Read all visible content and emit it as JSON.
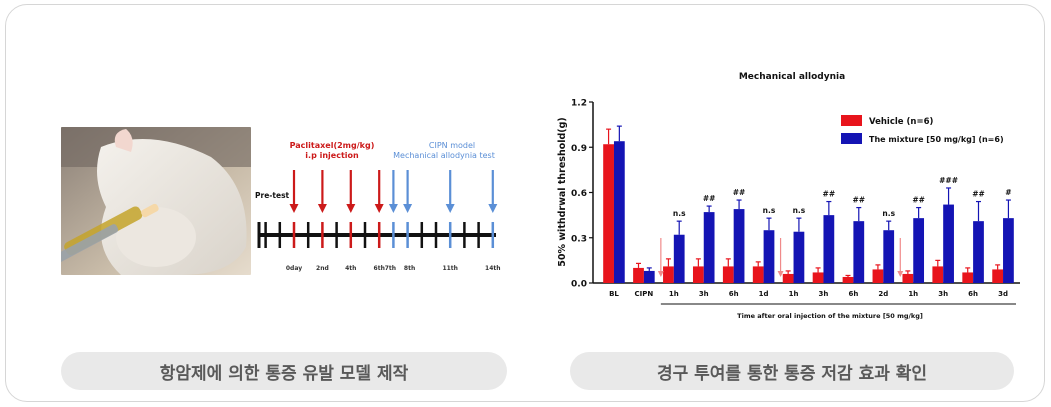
{
  "captions": {
    "left": "항암제에 의한 통증 유발 모델 제작",
    "right": "경구 투여를 통한 통증 저감 효과 확인"
  },
  "timeline": {
    "pretest_label": "Pre-test",
    "drug_label_line1": "Paclitaxel(2mg/kg)",
    "drug_label_line2": "i.p injection",
    "model_label_line1": "CIPN model",
    "model_label_line2": "Mechanical allodynia test",
    "days": [
      "0day",
      "2nd",
      "4th",
      "6th",
      "7th",
      "8th",
      "11th",
      "14th"
    ],
    "colors": {
      "drug": "#cc1a1a",
      "test": "#5b8fd6",
      "axis": "#111111"
    }
  },
  "chart_data": {
    "type": "bar",
    "title": "Mechanical allodynia",
    "ylabel": "50% withdrwal threshold(g)",
    "xlabel": "Time after oral injection of the mixture [50 mg/kg]",
    "ylim": [
      0,
      1.2
    ],
    "yticks": [
      "0.0",
      "0.3",
      "0.6",
      "0.9",
      "1.2"
    ],
    "categories": [
      "BL",
      "CIPN",
      "1h",
      "3h",
      "6h",
      "1d",
      "1h",
      "3h",
      "6h",
      "2d",
      "1h",
      "3h",
      "6h",
      "3d"
    ],
    "legend_position": "top-right",
    "series": [
      {
        "name": "Vehicle (n=6)",
        "color": "#e8141c",
        "values": [
          0.92,
          0.1,
          0.11,
          0.11,
          0.11,
          0.11,
          0.06,
          0.07,
          0.04,
          0.09,
          0.06,
          0.11,
          0.07,
          0.09
        ],
        "errors": [
          0.1,
          0.03,
          0.05,
          0.05,
          0.05,
          0.03,
          0.02,
          0.03,
          0.01,
          0.03,
          0.02,
          0.04,
          0.03,
          0.03
        ]
      },
      {
        "name": "The mixture [50 mg/kg] (n=6)",
        "color": "#1414b4",
        "values": [
          0.94,
          0.08,
          0.32,
          0.47,
          0.49,
          0.35,
          0.34,
          0.45,
          0.41,
          0.35,
          0.43,
          0.52,
          0.41,
          0.43
        ],
        "errors": [
          0.1,
          0.02,
          0.09,
          0.04,
          0.06,
          0.08,
          0.09,
          0.09,
          0.09,
          0.06,
          0.07,
          0.11,
          0.13,
          0.12
        ]
      }
    ],
    "significance": [
      "",
      "",
      "n.s",
      "##",
      "##",
      "n.s",
      "n.s",
      "##",
      "##",
      "n.s",
      "##",
      "###",
      "##",
      "#"
    ],
    "arrow_categories": [
      2,
      6,
      10
    ]
  }
}
